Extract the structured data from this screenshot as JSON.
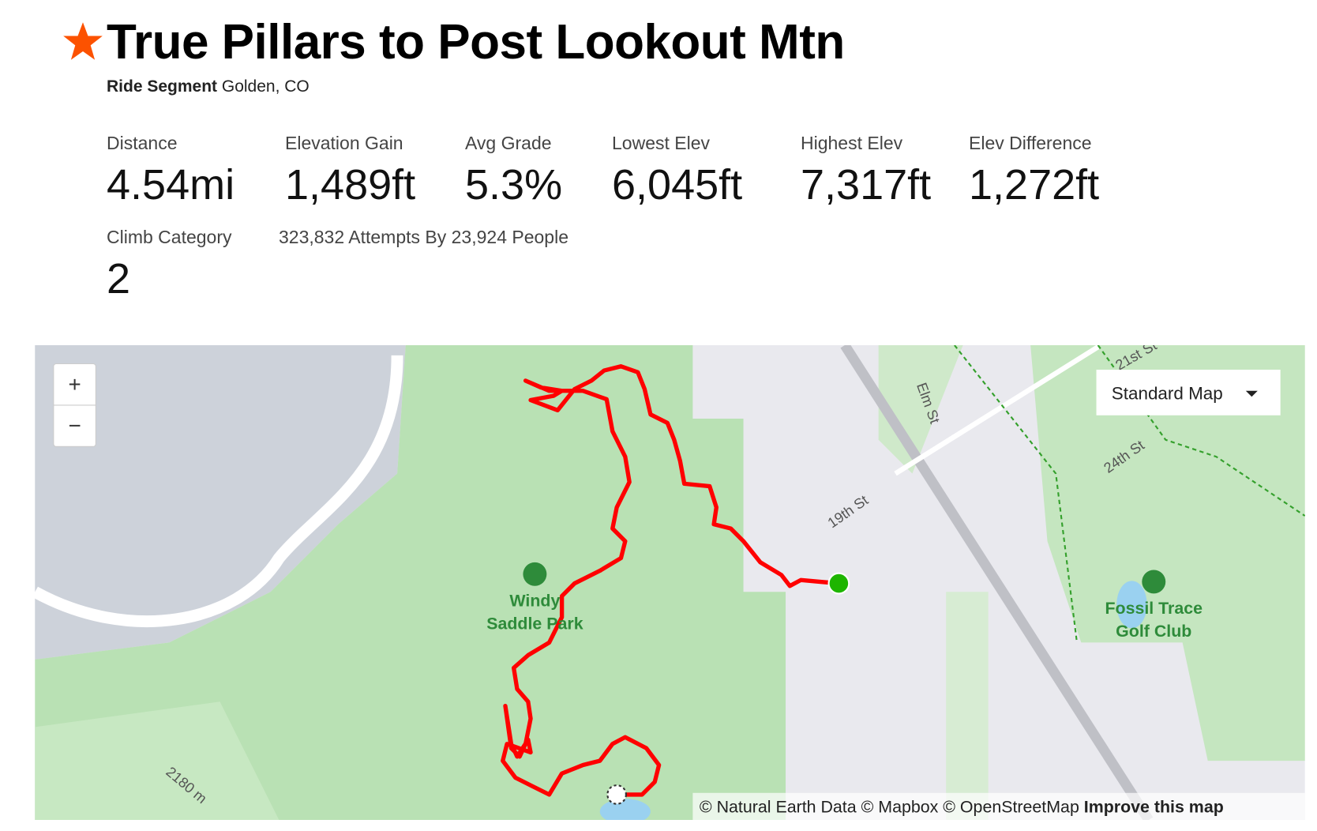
{
  "header": {
    "title": "True Pillars to Post Lookout Mtn",
    "segment_type": "Ride Segment",
    "location": "Golden, CO"
  },
  "stats": [
    {
      "label": "Distance",
      "value": "4.54mi"
    },
    {
      "label": "Elevation Gain",
      "value": "1,489ft"
    },
    {
      "label": "Avg Grade",
      "value": "5.3%"
    },
    {
      "label": "Lowest Elev",
      "value": "6,045ft"
    },
    {
      "label": "Highest Elev",
      "value": "7,317ft"
    },
    {
      "label": "Elev Difference",
      "value": "1,272ft"
    }
  ],
  "climb": {
    "label": "Climb Category",
    "value": "2"
  },
  "attempts": "323,832 Attempts By 23,924 People",
  "map": {
    "zoom_in": "+",
    "zoom_out": "−",
    "style_menu": "Standard Map",
    "labels": [
      "Windy",
      "Saddle Park",
      "Fossil Trace",
      "Golf Club",
      "Elm St",
      "19th St",
      "24th St",
      "21st St",
      "2180 m"
    ],
    "attribution": "© Natural Earth Data © Mapbox © OpenStreetMap",
    "improve": "Improve this map"
  }
}
